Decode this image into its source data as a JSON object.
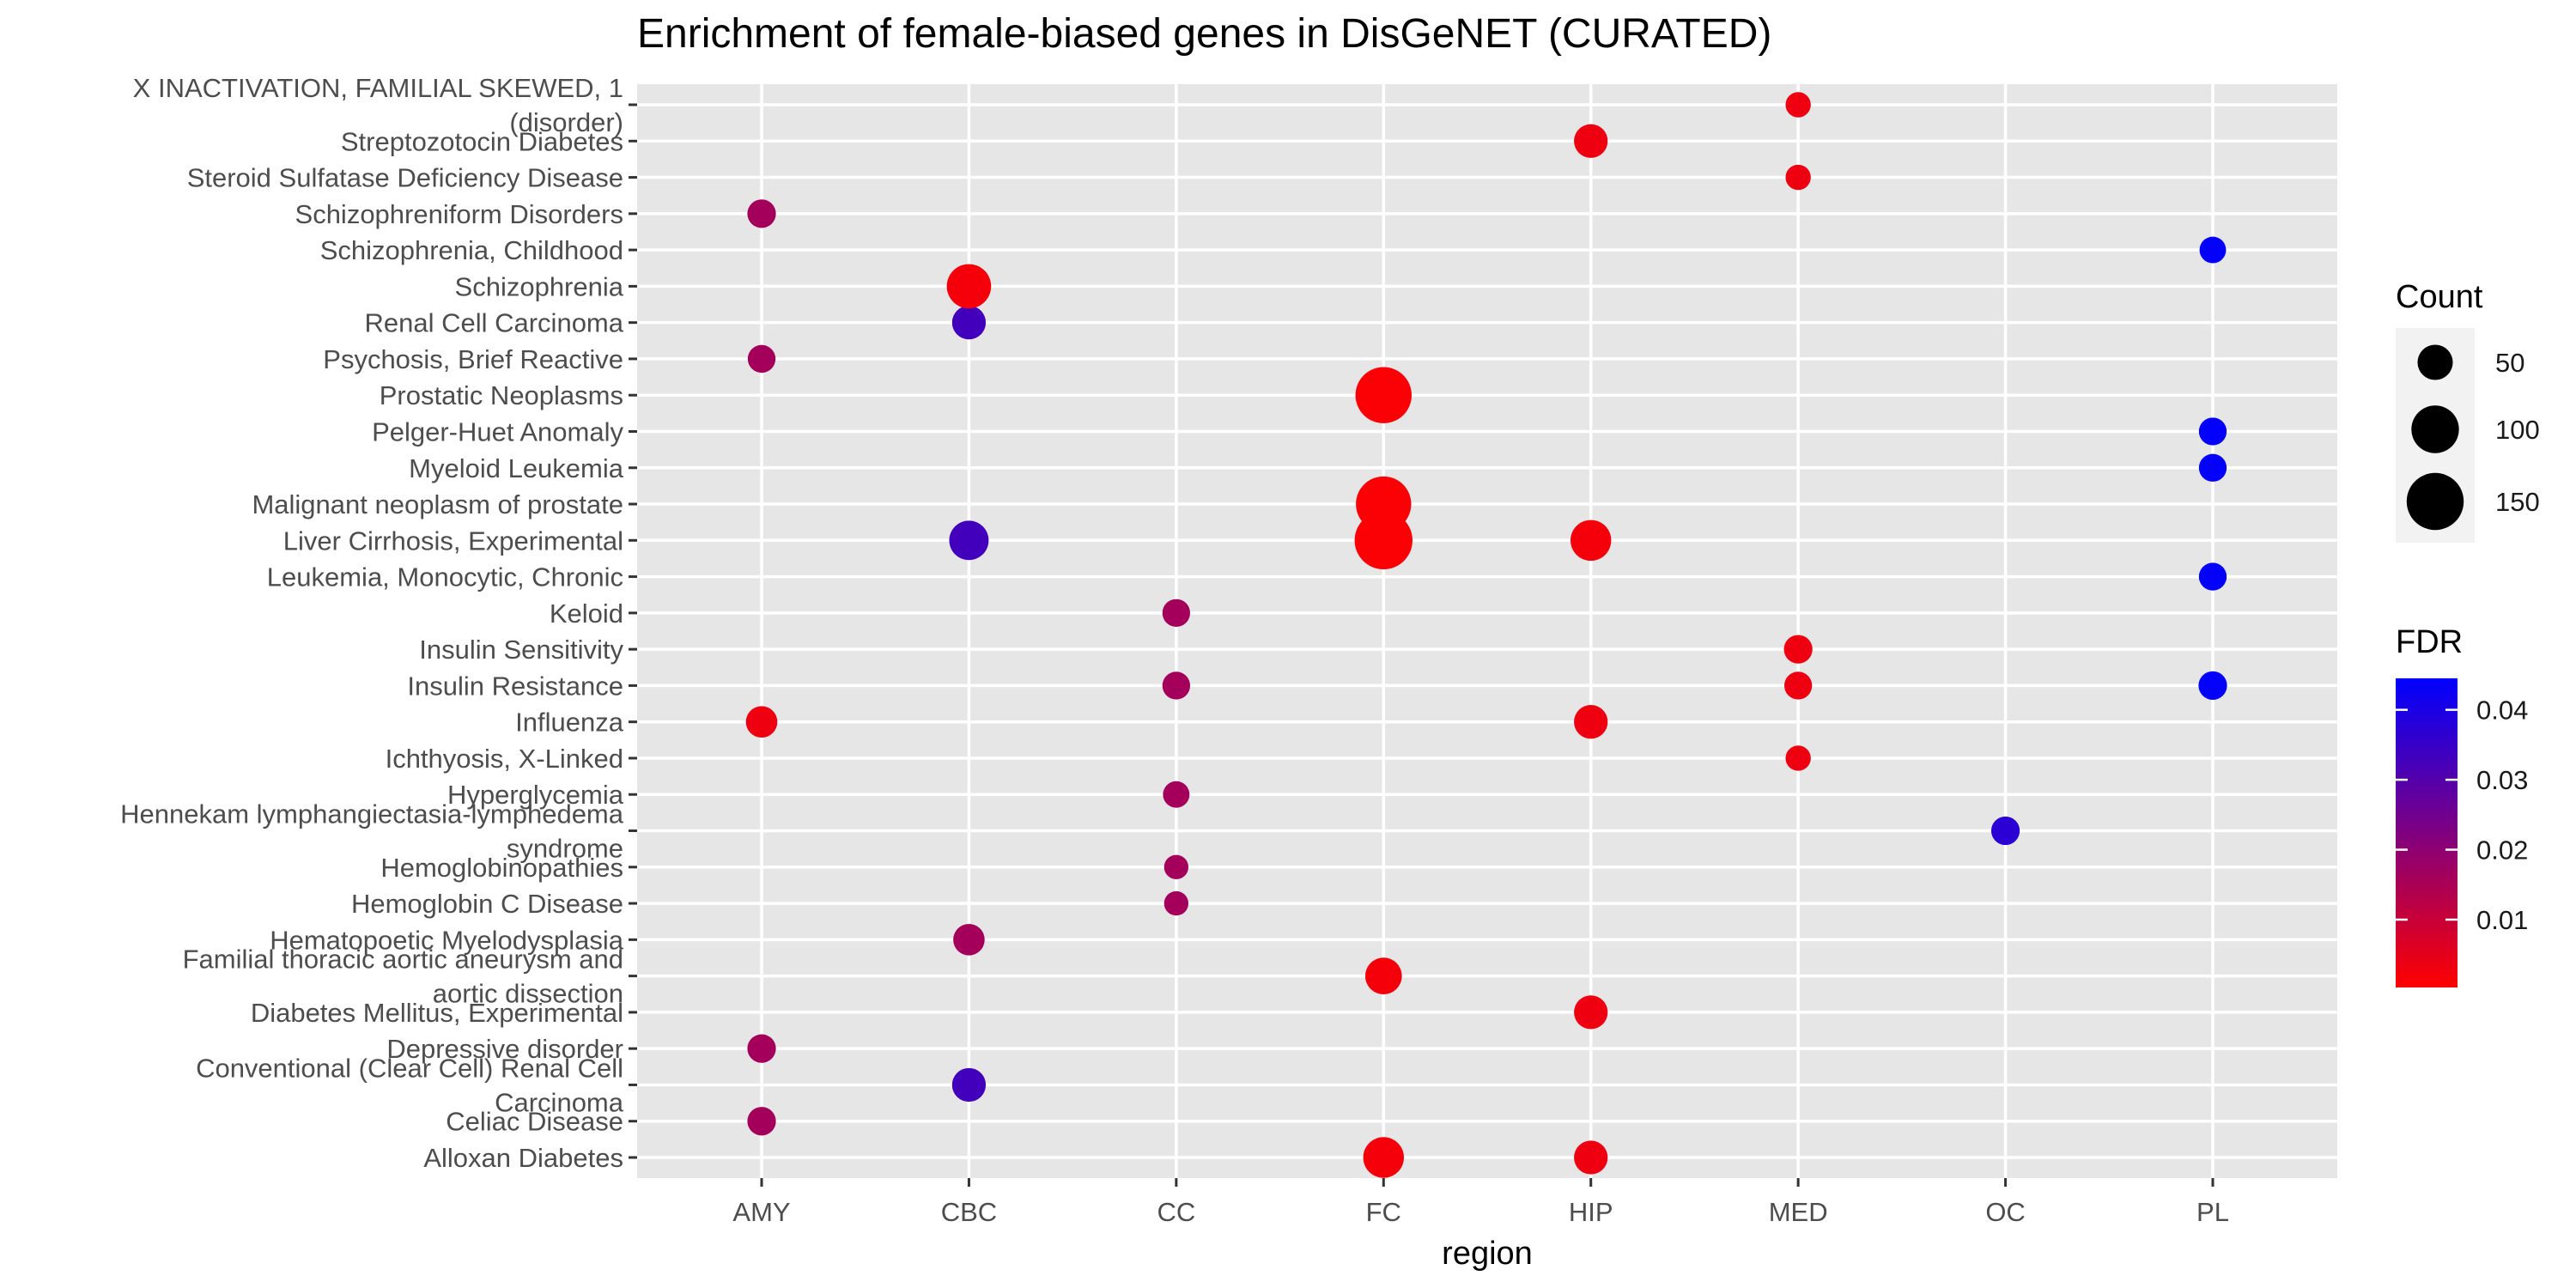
{
  "chart_data": {
    "type": "scatter",
    "title": "Enrichment of female-biased genes in DisGeNET (CURATED)",
    "xlabel": "region",
    "ylabel": "",
    "x_categories": [
      "AMY",
      "CBC",
      "CC",
      "FC",
      "HIP",
      "MED",
      "OC",
      "PL"
    ],
    "y_categories": [
      [
        "Alloxan Diabetes"
      ],
      [
        "Celiac Disease"
      ],
      [
        "Conventional (Clear Cell) Renal Cell",
        "Carcinoma"
      ],
      [
        "Depressive disorder"
      ],
      [
        "Diabetes Mellitus, Experimental"
      ],
      [
        "Familial thoracic aortic aneurysm and",
        "aortic dissection"
      ],
      [
        "Hematopoetic Myelodysplasia"
      ],
      [
        "Hemoglobin C Disease"
      ],
      [
        "Hemoglobinopathies"
      ],
      [
        "Hennekam lymphangiectasia-lymphedema",
        "syndrome"
      ],
      [
        "Hyperglycemia"
      ],
      [
        "Ichthyosis, X-Linked"
      ],
      [
        "Influenza"
      ],
      [
        "Insulin Resistance"
      ],
      [
        "Insulin Sensitivity"
      ],
      [
        "Keloid"
      ],
      [
        "Leukemia, Monocytic, Chronic"
      ],
      [
        "Liver Cirrhosis, Experimental"
      ],
      [
        "Malignant neoplasm of prostate"
      ],
      [
        "Myeloid Leukemia"
      ],
      [
        "Pelger-Huet Anomaly"
      ],
      [
        "Prostatic Neoplasms"
      ],
      [
        "Psychosis, Brief Reactive"
      ],
      [
        "Renal Cell Carcinoma"
      ],
      [
        "Schizophrenia"
      ],
      [
        "Schizophrenia, Childhood"
      ],
      [
        "Schizophreniform Disorders"
      ],
      [
        "Steroid Sulfatase Deficiency Disease"
      ],
      [
        "Streptozotocin Diabetes"
      ],
      [
        "X INACTIVATION, FAMILIAL SKEWED, 1",
        "(disorder)"
      ]
    ],
    "points": [
      {
        "x": "FC",
        "y": 0,
        "count": 70,
        "fdr": 0.002
      },
      {
        "x": "HIP",
        "y": 0,
        "count": 45,
        "fdr": 0.003
      },
      {
        "x": "AMY",
        "y": 1,
        "count": 30,
        "fdr": 0.016
      },
      {
        "x": "CBC",
        "y": 2,
        "count": 45,
        "fdr": 0.033
      },
      {
        "x": "AMY",
        "y": 3,
        "count": 30,
        "fdr": 0.016
      },
      {
        "x": "HIP",
        "y": 4,
        "count": 45,
        "fdr": 0.003
      },
      {
        "x": "FC",
        "y": 5,
        "count": 55,
        "fdr": 0.002
      },
      {
        "x": "CBC",
        "y": 6,
        "count": 38,
        "fdr": 0.016
      },
      {
        "x": "CC",
        "y": 7,
        "count": 20,
        "fdr": 0.016
      },
      {
        "x": "CC",
        "y": 8,
        "count": 20,
        "fdr": 0.016
      },
      {
        "x": "OC",
        "y": 9,
        "count": 30,
        "fdr": 0.037
      },
      {
        "x": "CC",
        "y": 10,
        "count": 25,
        "fdr": 0.016
      },
      {
        "x": "MED",
        "y": 11,
        "count": 22,
        "fdr": 0.003
      },
      {
        "x": "AMY",
        "y": 12,
        "count": 38,
        "fdr": 0.003
      },
      {
        "x": "HIP",
        "y": 12,
        "count": 45,
        "fdr": 0.003
      },
      {
        "x": "CC",
        "y": 13,
        "count": 28,
        "fdr": 0.016
      },
      {
        "x": "MED",
        "y": 13,
        "count": 28,
        "fdr": 0.003
      },
      {
        "x": "PL",
        "y": 13,
        "count": 30,
        "fdr": 0.044
      },
      {
        "x": "MED",
        "y": 14,
        "count": 30,
        "fdr": 0.003
      },
      {
        "x": "CC",
        "y": 15,
        "count": 28,
        "fdr": 0.016
      },
      {
        "x": "PL",
        "y": 16,
        "count": 28,
        "fdr": 0.044
      },
      {
        "x": "CBC",
        "y": 17,
        "count": 65,
        "fdr": 0.033
      },
      {
        "x": "FC",
        "y": 17,
        "count": 155,
        "fdr": 0.001
      },
      {
        "x": "HIP",
        "y": 17,
        "count": 70,
        "fdr": 0.002
      },
      {
        "x": "FC",
        "y": 18,
        "count": 140,
        "fdr": 0.001
      },
      {
        "x": "PL",
        "y": 19,
        "count": 28,
        "fdr": 0.044
      },
      {
        "x": "PL",
        "y": 20,
        "count": 28,
        "fdr": 0.044
      },
      {
        "x": "FC",
        "y": 21,
        "count": 145,
        "fdr": 0.001
      },
      {
        "x": "AMY",
        "y": 22,
        "count": 28,
        "fdr": 0.016
      },
      {
        "x": "CBC",
        "y": 23,
        "count": 45,
        "fdr": 0.033
      },
      {
        "x": "CBC",
        "y": 24,
        "count": 85,
        "fdr": 0.002
      },
      {
        "x": "PL",
        "y": 25,
        "count": 25,
        "fdr": 0.044
      },
      {
        "x": "AMY",
        "y": 26,
        "count": 30,
        "fdr": 0.016
      },
      {
        "x": "MED",
        "y": 27,
        "count": 22,
        "fdr": 0.003
      },
      {
        "x": "HIP",
        "y": 28,
        "count": 45,
        "fdr": 0.003
      },
      {
        "x": "MED",
        "y": 29,
        "count": 22,
        "fdr": 0.003
      }
    ],
    "legend": {
      "size_title": "Count",
      "size_breaks": [
        50,
        100,
        150
      ],
      "color_title": "FDR",
      "color_breaks": [
        0.01,
        0.02,
        0.03,
        0.04
      ],
      "color_break_labels": [
        "0.01",
        "0.02",
        "0.03",
        "0.04"
      ],
      "color_range": [
        0.0003,
        0.0445
      ],
      "color_low": "#ff0000",
      "color_high": "#0000ff",
      "placement": "right"
    },
    "grid": true,
    "panel_background": "#e6e6e6",
    "grid_color": "#ffffff"
  }
}
